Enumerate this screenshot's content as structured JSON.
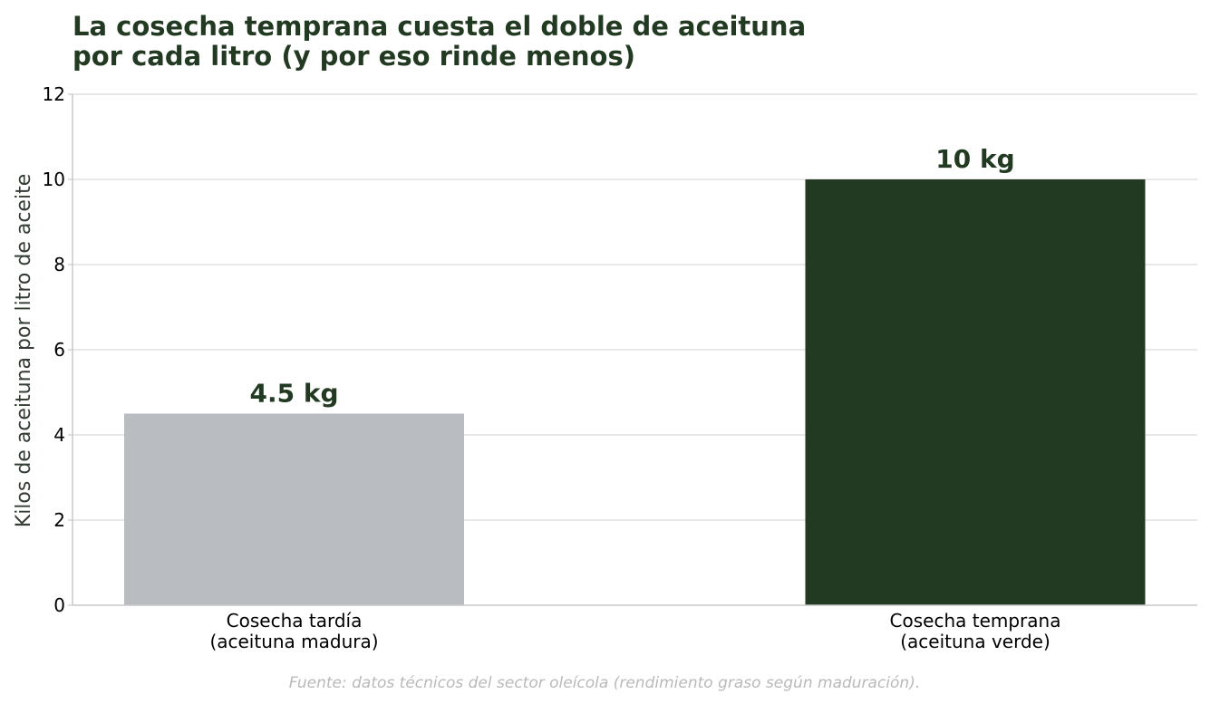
{
  "chart_data": {
    "type": "bar",
    "title_lines": [
      "La cosecha temprana cuesta el doble de aceituna",
      "por cada litro (y por eso rinde menos)"
    ],
    "ylabel": "Kilos de aceituna por litro de aceite",
    "xlabel": "",
    "ylim": [
      0,
      12
    ],
    "yticks": [
      0,
      2,
      4,
      6,
      8,
      10,
      12
    ],
    "grid": "horizontal",
    "categories": [
      [
        "Cosecha tardía",
        "(aceituna madura)"
      ],
      [
        "Cosecha temprana",
        "(aceituna verde)"
      ]
    ],
    "values": [
      4.5,
      10
    ],
    "value_labels": [
      "4.5 kg",
      "10 kg"
    ],
    "bar_colors": [
      "#b9bcc0",
      "#213a21"
    ],
    "source": "Fuente: datos técnicos del sector oleícola (rendimiento graso según maduración)."
  },
  "colors": {
    "title": "#213a21",
    "grid": "#e0e0e0",
    "axis": "#c8c8c8",
    "source": "#b9b9b9"
  }
}
